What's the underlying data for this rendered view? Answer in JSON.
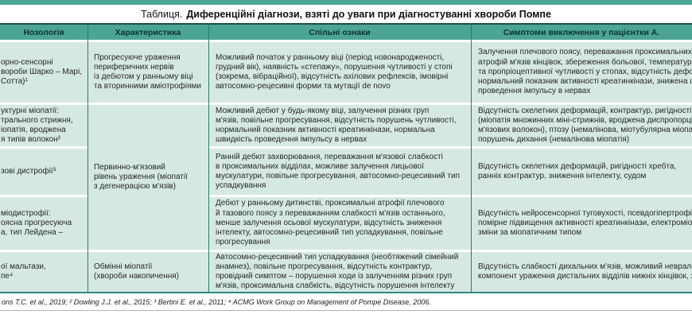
{
  "title": {
    "prefix": "Таблиця.",
    "text": "Диференційні діагнози, взяті до уваги при діагностуванні хвороби Помпе"
  },
  "columns": {
    "nosology": "Нозологія",
    "characteristic": "Характеристика",
    "common": "Спільні ознаки",
    "exclusion": "Симптоми виключення у пацієнтки А."
  },
  "rows": [
    {
      "nosology": "орно-сенсорні\nвороби Шарко – Марі,\nСотта)¹",
      "characteristic": "Прогресуюче ураження\nпериферичних нервів\nіз дебютом у ранньому віці\nта вторинними аміотрофіями",
      "common": "Можливий початок у ранньому віці (період новонародженості,\nгрудний вік), наявність «степажу», порушення чутливості у стопі\n(зокрема, вібраційної), відсутність ахілових рефлексів, імовірні\nавтосомно-рецесивні форми та мутації de novo",
      "exclusion": "Залучення плечового поясу, переважання проксимальних\nатрофій м'язів кінцівок, збереження больової, температурн\nта пропріоцептивної чутливості у стопах, відсутність дефор\nнормальний показник активності креатинкінази, знижена ш\nпроведення імпульсу в нервах"
    },
    {
      "nosology": "уктурні міопатії:\nтрального стрижня,\nіопатія, вроджена\nя типів волокон²",
      "characteristic": "Первинно-м'язовий\nрівень ураження (міопатії\nз дегенерацією м'язів)",
      "common": "Можливий дебют у будь-якому віці, залучення різних груп\nм'язів, повільне прогресування, відсутність порушень чутливості,\nнормальний показник активності креатинкінази, нормальна\nшвидкість проведення імпульсу в нервах",
      "exclusion": "Відсутність скелетних деформацій, контрактур, ригідності з\n(міопатія множинних міні-стрижнів, вроджена диспропорці\nм'язових волокон), птозу (немалінова, міотубулярна міопат\nпорушень дихання (немалінова міопатія)"
    },
    {
      "nosology": "зові дистрофії³",
      "common": "Ранній дебют захворювання, переважання м'язової слабкості\nв проксимальних відділах, можливе залучення лицьової\nмускулатури, повільне прогресування, автосомно-рецесивний тип\nуспадкування",
      "exclusion": "Відсутність скелетних деформацій, ригідності хребта,\nранніх контрактур, зниження інтелекту, судом"
    },
    {
      "nosology": "міодистрофії:\nоясна прогресуюча\nа, тип Лейдена –",
      "common": "Дебют у ранньому дитинстві, проксимальні атрофії плечового\nй тазового поясу з переважанням слабкості м'язів останнього,\nменше залучення осьової мускулатури, відсутність зниження\nінтелекту, автосомно-рецесивний тип успадкування, повільне\nпрогресування",
      "exclusion": "Відсутність нейросенсорної туговухості, псевдогіпертрофій\nпомірне підвищення активності креатинкінази, електроміо\nзміни за міопатичним типом"
    },
    {
      "nosology": "ої мальтази,\nпе⁴",
      "characteristic": "Обмінні міопатії\n(хвороби накопичення)",
      "common": "Автосомно-рецесивний тип успадкування (необтяжений сімейний\nанамнез), повільне прогресування, відсутність контрактур,\nпровідний симптом – порушення ходи із залученням різних груп\nм'язів, проксимальна слабкість, відсутність порушення інтелекту",
      "exclusion": "Відсутність слабкості дихальних м'язів, можливий невральн\nкомпонент ураження дистальних відділів нижніх кінцівок, з"
    }
  ],
  "footnote": "ons T.C. et al., 2019; ² Dowling J.J. et al., 2015; ³ Bertini E. et al., 2011; ⁴ ACMG Work Group on Management of Pompe Disease, 2006.",
  "colors": {
    "header_teal": "#4ca495",
    "cell_green": "#d6e9e1",
    "line_teal": "#267c6e",
    "header_text": "#0d3330"
  }
}
